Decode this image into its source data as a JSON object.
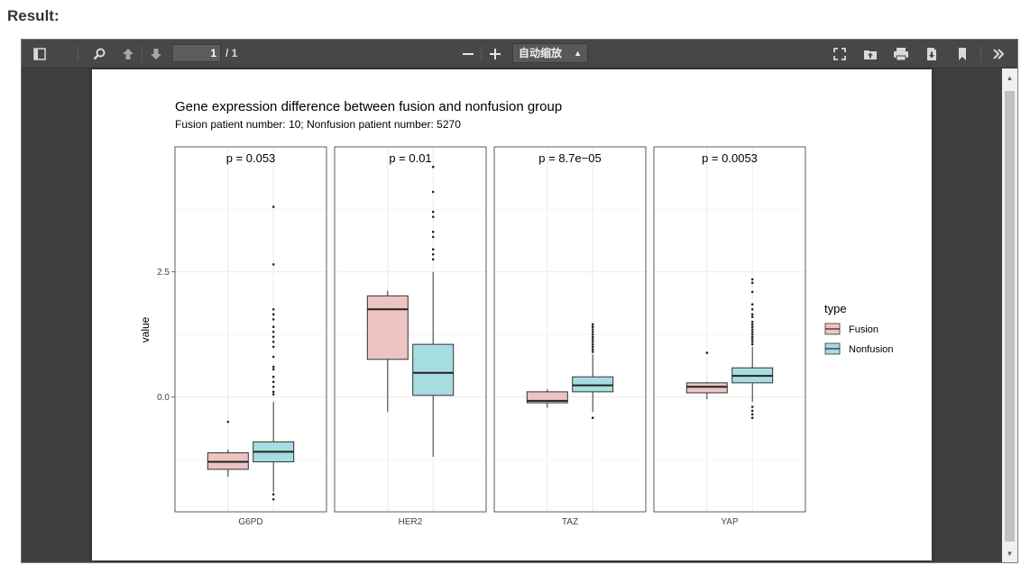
{
  "result_label": "Result:",
  "toolbar": {
    "page_current": "1",
    "page_count": "/ 1",
    "zoom_value": "自动缩放"
  },
  "chart_data": {
    "type": "box",
    "title": "Gene expression difference between fusion and nonfusion group",
    "subtitle": "Fusion patient number: 10; Nonfusion patient number: 5270",
    "ylabel": "value",
    "xlabel": "",
    "ylim": [
      -2.3,
      5.0
    ],
    "yticks": [
      0.0,
      2.5
    ],
    "ytick_labels": [
      "0.0",
      "2.5"
    ],
    "grid": true,
    "legend": {
      "title": "type",
      "entries": [
        "Fusion",
        "Nonfusion"
      ],
      "placement": "right"
    },
    "colors": {
      "Fusion": "#edc4c2",
      "Nonfusion": "#a6dde0",
      "border": "#333333"
    },
    "panels": [
      {
        "gene": "G6PD",
        "p_label": "p = 0.053",
        "Fusion": {
          "whisker_low": -1.6,
          "q1": -1.45,
          "median": -1.3,
          "q3": -1.12,
          "whisker_high": -1.05,
          "outliers": [
            -0.5
          ]
        },
        "Nonfusion": {
          "whisker_low": -1.9,
          "q1": -1.3,
          "median": -1.1,
          "q3": -0.9,
          "whisker_high": -0.1,
          "outliers": [
            3.8,
            2.65,
            1.75,
            1.65,
            1.55,
            1.4,
            1.3,
            1.2,
            1.1,
            1.0,
            0.8,
            0.6,
            0.55,
            0.4,
            0.3,
            0.2,
            0.1,
            0.05,
            -1.95,
            -2.05
          ]
        }
      },
      {
        "gene": "HER2",
        "p_label": "p = 0.01",
        "Fusion": {
          "whisker_low": -0.3,
          "q1": 0.75,
          "median": 1.75,
          "q3": 2.02,
          "whisker_high": 2.12,
          "outliers": []
        },
        "Nonfusion": {
          "whisker_low": -1.2,
          "q1": 0.03,
          "median": 0.48,
          "q3": 1.05,
          "whisker_high": 2.5,
          "outliers": [
            4.6,
            4.1,
            3.7,
            3.6,
            3.3,
            3.2,
            2.95,
            2.85,
            2.75
          ]
        }
      },
      {
        "gene": "TAZ",
        "p_label": "p = 8.7e−05",
        "Fusion": {
          "whisker_low": -0.22,
          "q1": -0.12,
          "median": -0.08,
          "q3": 0.1,
          "whisker_high": 0.15,
          "outliers": []
        },
        "Nonfusion": {
          "whisker_low": -0.3,
          "q1": 0.1,
          "median": 0.23,
          "q3": 0.4,
          "whisker_high": 0.85,
          "outliers": [
            1.45,
            1.4,
            1.35,
            1.3,
            1.25,
            1.2,
            1.15,
            1.1,
            1.05,
            1.0,
            0.95,
            0.9,
            -0.42
          ]
        }
      },
      {
        "gene": "YAP",
        "p_label": "p = 0.0053",
        "Fusion": {
          "whisker_low": -0.05,
          "q1": 0.08,
          "median": 0.2,
          "q3": 0.28,
          "whisker_high": 0.3,
          "outliers": [
            0.88
          ]
        },
        "Nonfusion": {
          "whisker_low": -0.1,
          "q1": 0.28,
          "median": 0.42,
          "q3": 0.58,
          "whisker_high": 1.0,
          "outliers": [
            2.35,
            2.28,
            2.1,
            1.85,
            1.75,
            1.65,
            1.6,
            1.5,
            1.45,
            1.4,
            1.35,
            1.3,
            1.25,
            1.2,
            1.15,
            1.1,
            1.05,
            -0.2,
            -0.28,
            -0.35,
            -0.42
          ]
        }
      }
    ]
  }
}
